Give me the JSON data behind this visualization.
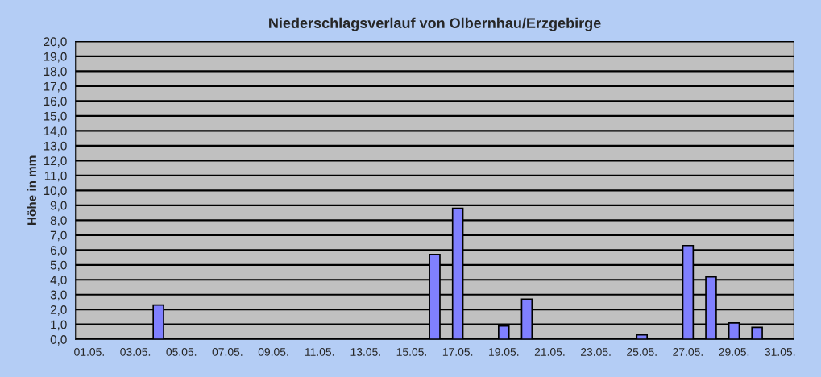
{
  "chart_data": {
    "type": "bar",
    "title": "Niederschlagsverlauf von Olbernhau/Erzgebirge",
    "ylabel": "Höhe in mm",
    "categories": [
      "01.05.",
      null,
      "03.05.",
      null,
      "05.05.",
      null,
      "07.05.",
      null,
      "09.05.",
      null,
      "11.05.",
      null,
      "13.05.",
      null,
      "15.05.",
      null,
      "17.05.",
      null,
      "19.05.",
      null,
      "21.05.",
      null,
      "23.05.",
      null,
      "25.05.",
      null,
      "27.05.",
      null,
      "29.05.",
      null,
      "31.05."
    ],
    "values": [
      0,
      0,
      0,
      2.3,
      0,
      0,
      0,
      0,
      0,
      0,
      0,
      0,
      0,
      0,
      0,
      5.7,
      8.8,
      0,
      0.9,
      2.7,
      0,
      0,
      0,
      0,
      0.3,
      0,
      6.3,
      4.2,
      1.1,
      0.8,
      0
    ],
    "color": "#8080ff",
    "ylim": [
      0,
      20
    ],
    "yticks": [
      {
        "value": 0,
        "label": "0,0"
      },
      {
        "value": 1,
        "label": "1,0"
      },
      {
        "value": 2,
        "label": "2,0"
      },
      {
        "value": 3,
        "label": "3,0"
      },
      {
        "value": 4,
        "label": "4,0"
      },
      {
        "value": 5,
        "label": "5,0"
      },
      {
        "value": 6,
        "label": "6,0"
      },
      {
        "value": 7,
        "label": "7,0"
      },
      {
        "value": 8,
        "label": "8,0"
      },
      {
        "value": 9,
        "label": "9,0"
      },
      {
        "value": 10,
        "label": "10,0"
      },
      {
        "value": 11,
        "label": "11,0"
      },
      {
        "value": 12,
        "label": "12,0"
      },
      {
        "value": 13,
        "label": "13,0"
      },
      {
        "value": 14,
        "label": "14,0"
      },
      {
        "value": 15,
        "label": "15,0"
      },
      {
        "value": 16,
        "label": "16,0"
      },
      {
        "value": 17,
        "label": "17,0"
      },
      {
        "value": 18,
        "label": "18,0"
      },
      {
        "value": 19,
        "label": "19,0"
      },
      {
        "value": 20,
        "label": "20,0"
      }
    ],
    "grid": "y",
    "legend": false
  }
}
